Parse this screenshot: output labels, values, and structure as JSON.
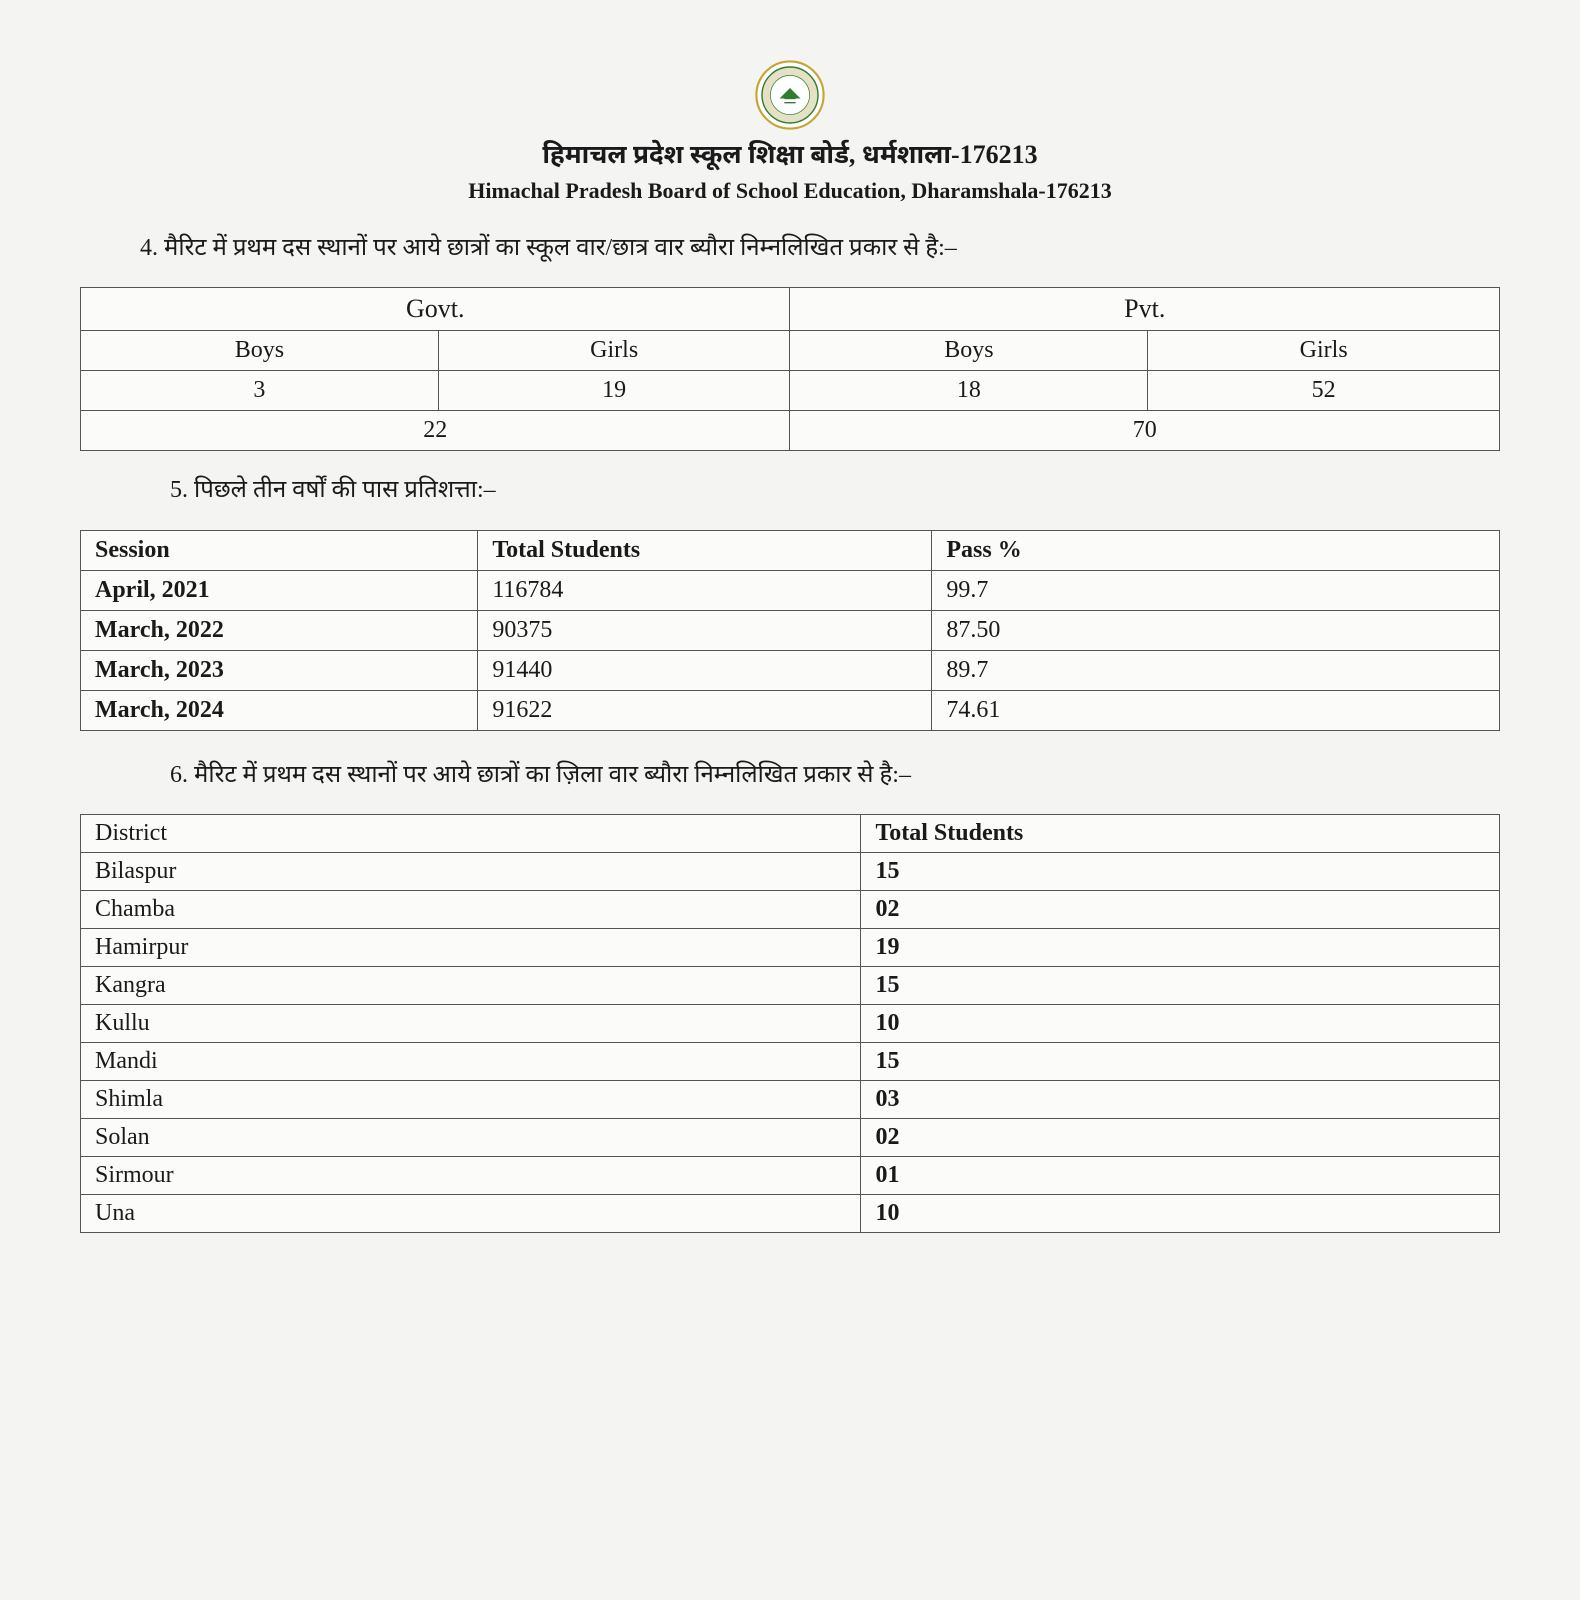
{
  "header": {
    "title_hi": "हिमाचल प्रदेश स्कूल शिक्षा बोर्ड, धर्मशाला-176213",
    "title_en": "Himachal Pradesh Board of School Education, Dharamshala-176213"
  },
  "item4": {
    "num": "4.",
    "text": "मैरिट में प्रथम दस स्थानों पर आये छात्रों का स्कूल वार/छात्र वार ब्यौरा निम्नलिखित प्रकार से है:–"
  },
  "merit": {
    "govt_label": "Govt.",
    "pvt_label": "Pvt.",
    "boys_label": "Boys",
    "girls_label": "Girls",
    "govt_boys": "3",
    "govt_girls": "19",
    "pvt_boys": "18",
    "pvt_girls": "52",
    "govt_total": "22",
    "pvt_total": "70"
  },
  "item5": {
    "num": "5.",
    "text": "पिछले तीन वर्षों की पास प्रतिशत्ता:–"
  },
  "pass_table": {
    "cols": {
      "session": "Session",
      "total": "Total Students",
      "pass": "Pass %"
    },
    "rows": [
      {
        "session": "April, 2021",
        "total": "116784",
        "pass": "99.7"
      },
      {
        "session": "March, 2022",
        "total": "90375",
        "pass": "87.50"
      },
      {
        "session": "March, 2023",
        "total": "91440",
        "pass": "89.7"
      },
      {
        "session": "March, 2024",
        "total": "91622",
        "pass": "74.61"
      }
    ]
  },
  "item6": {
    "num": "6.",
    "text": "मैरिट में प्रथम दस स्थानों पर आये छात्रों का ज़िला वार ब्यौरा निम्नलिखित प्रकार से है:–"
  },
  "district_table": {
    "cols": {
      "district": "District",
      "total": "Total Students"
    },
    "rows": [
      {
        "district": "Bilaspur",
        "total": "15"
      },
      {
        "district": "Chamba",
        "total": "02"
      },
      {
        "district": "Hamirpur",
        "total": "19"
      },
      {
        "district": "Kangra",
        "total": "15"
      },
      {
        "district": "Kullu",
        "total": "10"
      },
      {
        "district": "Mandi",
        "total": "15"
      },
      {
        "district": "Shimla",
        "total": "03"
      },
      {
        "district": "Solan",
        "total": "02"
      },
      {
        "district": "Sirmour",
        "total": "01"
      },
      {
        "district": "Una",
        "total": "10"
      }
    ]
  }
}
